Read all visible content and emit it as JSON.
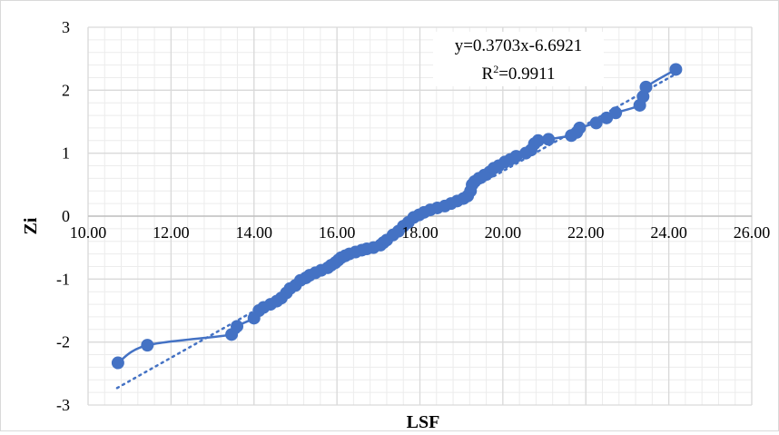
{
  "chart_data": {
    "type": "scatter",
    "title": "",
    "xlabel": "LSF",
    "ylabel": "Zi",
    "xlim": [
      10,
      26
    ],
    "ylim": [
      -3,
      3
    ],
    "x_ticks": [
      "10.00",
      "12.00",
      "14.00",
      "16.00",
      "18.00",
      "20.00",
      "22.00",
      "24.00",
      "26.00"
    ],
    "y_ticks": [
      "-3",
      "-2",
      "-1",
      "0",
      "1",
      "2",
      "3"
    ],
    "grid": true,
    "minor_grid": true,
    "colors": {
      "series": "#4472c4",
      "grid_major": "#d9d9d9",
      "grid_minor": "#ececec"
    },
    "trendline": {
      "type": "linear",
      "slope": 0.3703,
      "intercept": -6.6921,
      "x_range": [
        10.7,
        24.2
      ],
      "style": "dotted",
      "equation_label": "y=0.3703x-6.6921",
      "r2_prefix": "R",
      "r2_sup": "2",
      "r2_value": "=0.9911"
    },
    "series": [
      {
        "style": "smooth-line-with-markers",
        "x": [
          10.72,
          11.43,
          13.46,
          13.59,
          14.0,
          14.12,
          14.23,
          14.4,
          14.55,
          14.66,
          14.78,
          14.87,
          15.0,
          15.12,
          15.25,
          15.34,
          15.48,
          15.62,
          15.78,
          15.86,
          15.96,
          16.03,
          16.1,
          16.2,
          16.3,
          16.45,
          16.6,
          16.72,
          16.88,
          17.05,
          17.12,
          17.2,
          17.35,
          17.48,
          17.6,
          17.72,
          17.85,
          17.98,
          18.1,
          18.25,
          18.42,
          18.6,
          18.75,
          18.9,
          19.05,
          19.15,
          19.22,
          19.26,
          19.32,
          19.42,
          19.55,
          19.68,
          19.78,
          19.9,
          20.05,
          20.18,
          20.32,
          20.55,
          20.68,
          20.76,
          20.85,
          21.1,
          21.65,
          21.78,
          21.85,
          22.25,
          22.5,
          22.72,
          23.3,
          23.38,
          23.45,
          24.17
        ],
        "y": [
          -2.33,
          -2.05,
          -1.88,
          -1.75,
          -1.62,
          -1.5,
          -1.45,
          -1.4,
          -1.35,
          -1.3,
          -1.22,
          -1.15,
          -1.1,
          -1.02,
          -0.98,
          -0.94,
          -0.9,
          -0.86,
          -0.82,
          -0.78,
          -0.74,
          -0.7,
          -0.66,
          -0.63,
          -0.6,
          -0.57,
          -0.54,
          -0.52,
          -0.5,
          -0.46,
          -0.42,
          -0.38,
          -0.3,
          -0.24,
          -0.16,
          -0.1,
          -0.02,
          0.02,
          0.06,
          0.1,
          0.13,
          0.16,
          0.2,
          0.24,
          0.28,
          0.32,
          0.4,
          0.5,
          0.55,
          0.6,
          0.65,
          0.7,
          0.76,
          0.8,
          0.86,
          0.9,
          0.95,
          1.0,
          1.05,
          1.15,
          1.2,
          1.22,
          1.28,
          1.33,
          1.4,
          1.48,
          1.56,
          1.64,
          1.76,
          1.9,
          2.05,
          2.33
        ]
      }
    ]
  }
}
